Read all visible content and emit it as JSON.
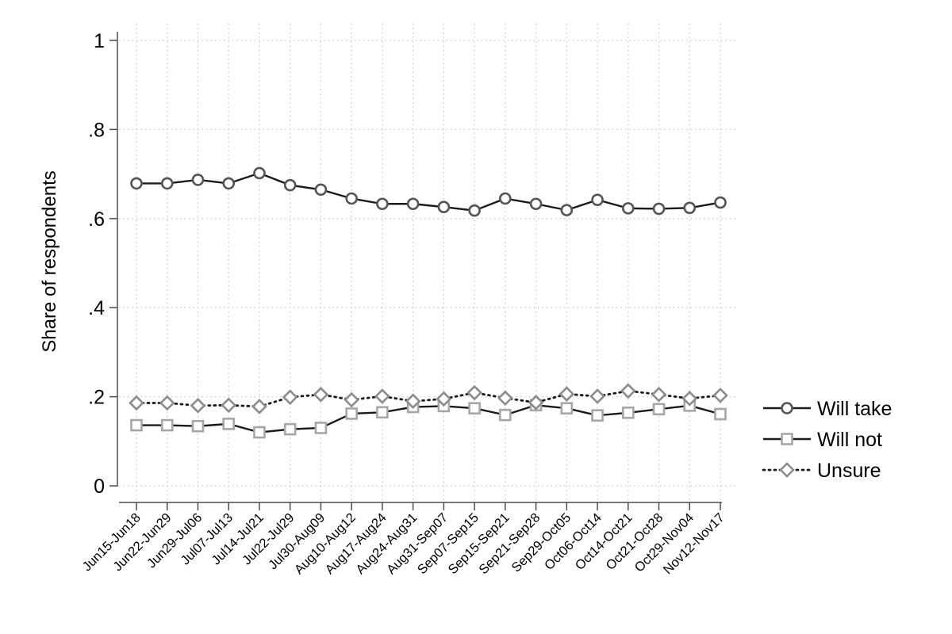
{
  "chart_data": {
    "type": "line",
    "ylabel": "Share of respondents",
    "xlabel": "",
    "ylim": [
      0,
      1
    ],
    "yticks": [
      {
        "value": 0,
        "label": "0"
      },
      {
        "value": 0.2,
        "label": ".2"
      },
      {
        "value": 0.4,
        "label": ".4"
      },
      {
        "value": 0.6,
        "label": ".6"
      },
      {
        "value": 0.8,
        "label": ".8"
      },
      {
        "value": 1,
        "label": "1"
      }
    ],
    "grid": true,
    "legend_position": "right",
    "categories": [
      "Jun15-Jun18",
      "Jun22-Jun29",
      "Jun29-Jul06",
      "Jul07-Jul13",
      "Jul14-Jul21",
      "Jul22-Jul29",
      "Jul30-Aug09",
      "Aug10-Aug12",
      "Aug17-Aug24",
      "Aug24-Aug31",
      "Aug31-Sep07",
      "Sep07-Sep15",
      "Sep15-Sep21",
      "Sep21-Sep28",
      "Sep29-Oct05",
      "Oct06-Oct14",
      "Oct14-Oct21",
      "Oct21-Oct28",
      "Oct29-Nov04",
      "Nov12-Nov17"
    ],
    "series": [
      {
        "name": "Will take",
        "marker": "circle",
        "line_style": "solid",
        "line_color": "#1a1a1a",
        "marker_color": "#555555",
        "values": [
          0.679,
          0.679,
          0.687,
          0.679,
          0.702,
          0.675,
          0.665,
          0.645,
          0.633,
          0.633,
          0.626,
          0.618,
          0.645,
          0.633,
          0.619,
          0.642,
          0.623,
          0.622,
          0.624,
          0.636
        ]
      },
      {
        "name": "Will not",
        "marker": "square",
        "line_style": "solid",
        "line_color": "#1a1a1a",
        "marker_color": "#a6a6a6",
        "values": [
          0.136,
          0.136,
          0.134,
          0.139,
          0.12,
          0.127,
          0.13,
          0.162,
          0.165,
          0.177,
          0.179,
          0.174,
          0.159,
          0.181,
          0.174,
          0.158,
          0.164,
          0.172,
          0.18,
          0.161
        ]
      },
      {
        "name": "Unsure",
        "marker": "diamond",
        "line_style": "dotted",
        "line_color": "#1a1a1a",
        "marker_color": "#8c8c8c",
        "values": [
          0.186,
          0.186,
          0.18,
          0.181,
          0.178,
          0.199,
          0.205,
          0.193,
          0.201,
          0.19,
          0.195,
          0.209,
          0.197,
          0.187,
          0.206,
          0.201,
          0.213,
          0.205,
          0.196,
          0.203
        ]
      }
    ]
  }
}
